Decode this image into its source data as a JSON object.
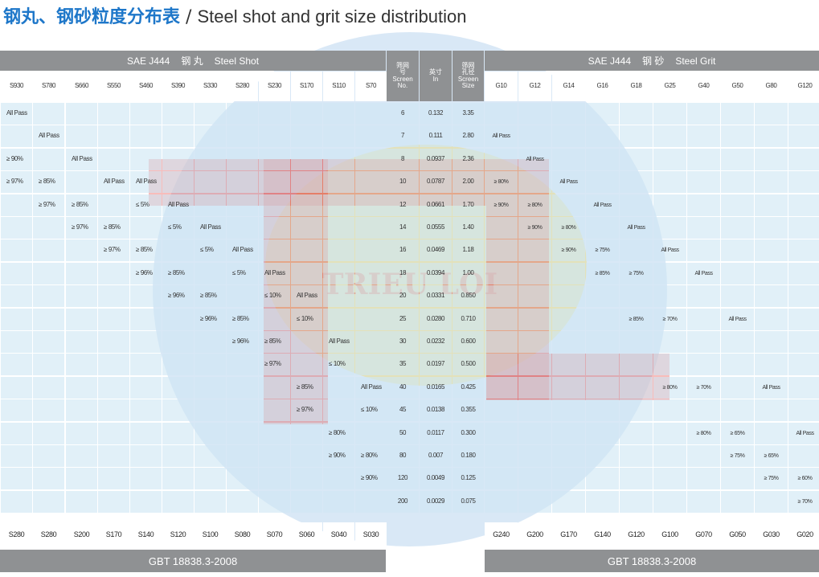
{
  "title": {
    "cn": "钢丸、钢砂粒度分布表",
    "separator": "/",
    "en": "Steel shot and grit size distribution"
  },
  "shot_band": {
    "std": "SAE J444",
    "cn": "钢 丸",
    "en": "Steel Shot"
  },
  "grit_band": {
    "std": "SAE J444",
    "cn": "钢 砂",
    "en": "Steel Grit"
  },
  "mid_headers": [
    [
      "筛网",
      "号",
      "Screen",
      "No."
    ],
    [
      "英寸",
      "In"
    ],
    [
      "筛网",
      "孔径",
      "Screen",
      "Size"
    ]
  ],
  "shot_sizes": [
    "S930",
    "S780",
    "S660",
    "S550",
    "S460",
    "S390",
    "S330",
    "S280",
    "S230",
    "S170",
    "S110",
    "S70"
  ],
  "grit_sizes": [
    "G10",
    "G12",
    "G14",
    "G16",
    "G18",
    "G25",
    "G40",
    "G50",
    "G80",
    "G120"
  ],
  "rows": [
    {
      "screen": "6",
      "inch": "0.132",
      "mm": "3.35"
    },
    {
      "screen": "7",
      "inch": "0.111",
      "mm": "2.80"
    },
    {
      "screen": "8",
      "inch": "0.0937",
      "mm": "2.36"
    },
    {
      "screen": "10",
      "inch": "0.0787",
      "mm": "2.00"
    },
    {
      "screen": "12",
      "inch": "0.0661",
      "mm": "1.70"
    },
    {
      "screen": "14",
      "inch": "0.0555",
      "mm": "1.40"
    },
    {
      "screen": "16",
      "inch": "0.0469",
      "mm": "1.18"
    },
    {
      "screen": "18",
      "inch": "0.0394",
      "mm": "1.00"
    },
    {
      "screen": "20",
      "inch": "0.0331",
      "mm": "0.850"
    },
    {
      "screen": "25",
      "inch": "0.0280",
      "mm": "0.710"
    },
    {
      "screen": "30",
      "inch": "0.0232",
      "mm": "0.600"
    },
    {
      "screen": "35",
      "inch": "0.0197",
      "mm": "0.500"
    },
    {
      "screen": "40",
      "inch": "0.0165",
      "mm": "0.425"
    },
    {
      "screen": "45",
      "inch": "0.0138",
      "mm": "0.355"
    },
    {
      "screen": "50",
      "inch": "0.0117",
      "mm": "0.300"
    },
    {
      "screen": "80",
      "inch": "0.007",
      "mm": "0.180"
    },
    {
      "screen": "120",
      "inch": "0.0049",
      "mm": "0.125"
    },
    {
      "screen": "200",
      "inch": "0.0029",
      "mm": "0.075"
    }
  ],
  "shot_values": [
    [
      "All Pass",
      "",
      "",
      "",
      "",
      "",
      "",
      "",
      "",
      "",
      "",
      ""
    ],
    [
      "",
      "All Pass",
      "",
      "",
      "",
      "",
      "",
      "",
      "",
      "",
      "",
      ""
    ],
    [
      "≥ 90%",
      "",
      "All Pass",
      "",
      "",
      "",
      "",
      "",
      "",
      "",
      "",
      ""
    ],
    [
      "≥ 97%",
      "≥ 85%",
      "",
      "All Pass",
      "All Pass",
      "",
      "",
      "",
      "",
      "",
      "",
      ""
    ],
    [
      "",
      "≥ 97%",
      "≥ 85%",
      "",
      "≤ 5%",
      "All Pass",
      "",
      "",
      "",
      "",
      "",
      ""
    ],
    [
      "",
      "",
      "≥ 97%",
      "≥ 85%",
      "",
      "≤ 5%",
      "All Pass",
      "",
      "",
      "",
      "",
      ""
    ],
    [
      "",
      "",
      "",
      "≥ 97%",
      "≥ 85%",
      "",
      "≤ 5%",
      "All Pass",
      "",
      "",
      "",
      ""
    ],
    [
      "",
      "",
      "",
      "",
      "≥ 96%",
      "≥ 85%",
      "",
      "≤ 5%",
      "All Pass",
      "",
      "",
      ""
    ],
    [
      "",
      "",
      "",
      "",
      "",
      "≥ 96%",
      "≥ 85%",
      "",
      "≤ 10%",
      "All Pass",
      "",
      ""
    ],
    [
      "",
      "",
      "",
      "",
      "",
      "",
      "≥ 96%",
      "≥ 85%",
      "",
      "≤ 10%",
      "",
      ""
    ],
    [
      "",
      "",
      "",
      "",
      "",
      "",
      "",
      "≥ 96%",
      "≥ 85%",
      "",
      "All Pass",
      ""
    ],
    [
      "",
      "",
      "",
      "",
      "",
      "",
      "",
      "",
      "≥ 97%",
      "",
      "≤ 10%",
      ""
    ],
    [
      "",
      "",
      "",
      "",
      "",
      "",
      "",
      "",
      "",
      "≥ 85%",
      "",
      "All Pass"
    ],
    [
      "",
      "",
      "",
      "",
      "",
      "",
      "",
      "",
      "",
      "≥ 97%",
      "",
      "≤ 10%"
    ],
    [
      "",
      "",
      "",
      "",
      "",
      "",
      "",
      "",
      "",
      "",
      "≥ 80%",
      ""
    ],
    [
      "",
      "",
      "",
      "",
      "",
      "",
      "",
      "",
      "",
      "",
      "≥ 90%",
      "≥ 80%"
    ],
    [
      "",
      "",
      "",
      "",
      "",
      "",
      "",
      "",
      "",
      "",
      "",
      "≥ 90%"
    ],
    [
      "",
      "",
      "",
      "",
      "",
      "",
      "",
      "",
      "",
      "",
      "",
      ""
    ]
  ],
  "grit_values": [
    [
      "",
      "",
      "",
      "",
      "",
      "",
      "",
      "",
      "",
      ""
    ],
    [
      "All Pass",
      "",
      "",
      "",
      "",
      "",
      "",
      "",
      "",
      ""
    ],
    [
      "",
      "All Pass",
      "",
      "",
      "",
      "",
      "",
      "",
      "",
      ""
    ],
    [
      "≥ 80%",
      "",
      "All Pass",
      "",
      "",
      "",
      "",
      "",
      "",
      ""
    ],
    [
      "≥ 90%",
      "≥ 80%",
      "",
      "All Pass",
      "",
      "",
      "",
      "",
      "",
      ""
    ],
    [
      "",
      "≥ 90%",
      "≥ 80%",
      "",
      "All Pass",
      "",
      "",
      "",
      "",
      ""
    ],
    [
      "",
      "",
      "≥ 90%",
      "≥ 75%",
      "",
      "All Pass",
      "",
      "",
      "",
      ""
    ],
    [
      "",
      "",
      "",
      "≥ 85%",
      "≥ 75%",
      "",
      "All Pass",
      "",
      "",
      ""
    ],
    [
      "",
      "",
      "",
      "",
      "",
      "",
      "",
      "",
      "",
      ""
    ],
    [
      "",
      "",
      "",
      "",
      "≥ 85%",
      "≥ 70%",
      "",
      "All Pass",
      "",
      ""
    ],
    [
      "",
      "",
      "",
      "",
      "",
      "",
      "",
      "",
      "",
      ""
    ],
    [
      "",
      "",
      "",
      "",
      "",
      "",
      "",
      "",
      "",
      ""
    ],
    [
      "",
      "",
      "",
      "",
      "",
      "≥ 80%",
      "≥ 70%",
      "",
      "All Pass",
      ""
    ],
    [
      "",
      "",
      "",
      "",
      "",
      "",
      "",
      "",
      "",
      ""
    ],
    [
      "",
      "",
      "",
      "",
      "",
      "",
      "≥ 80%",
      "≥ 65%",
      "",
      "All Pass"
    ],
    [
      "",
      "",
      "",
      "",
      "",
      "",
      "",
      "≥ 75%",
      "≥ 65%",
      ""
    ],
    [
      "",
      "",
      "",
      "",
      "",
      "",
      "",
      "",
      "≥ 75%",
      "≥ 60%"
    ],
    [
      "",
      "",
      "",
      "",
      "",
      "",
      "",
      "",
      "",
      "≥ 70%"
    ]
  ],
  "shot_gbt": [
    "S280",
    "S280",
    "S200",
    "S170",
    "S140",
    "S120",
    "S100",
    "S080",
    "S070",
    "S060",
    "S040",
    "S030"
  ],
  "grit_gbt": [
    "G240",
    "G200",
    "G170",
    "G140",
    "G120",
    "G100",
    "G070",
    "G050",
    "G030",
    "G020"
  ],
  "footer_standard": "GBT 18838.3-2008",
  "watermark": {
    "text": "TRIEU LOI",
    "colors": {
      "blue": "#1e77c9",
      "red": "#e8221a",
      "yellow": "#f2c200"
    }
  }
}
